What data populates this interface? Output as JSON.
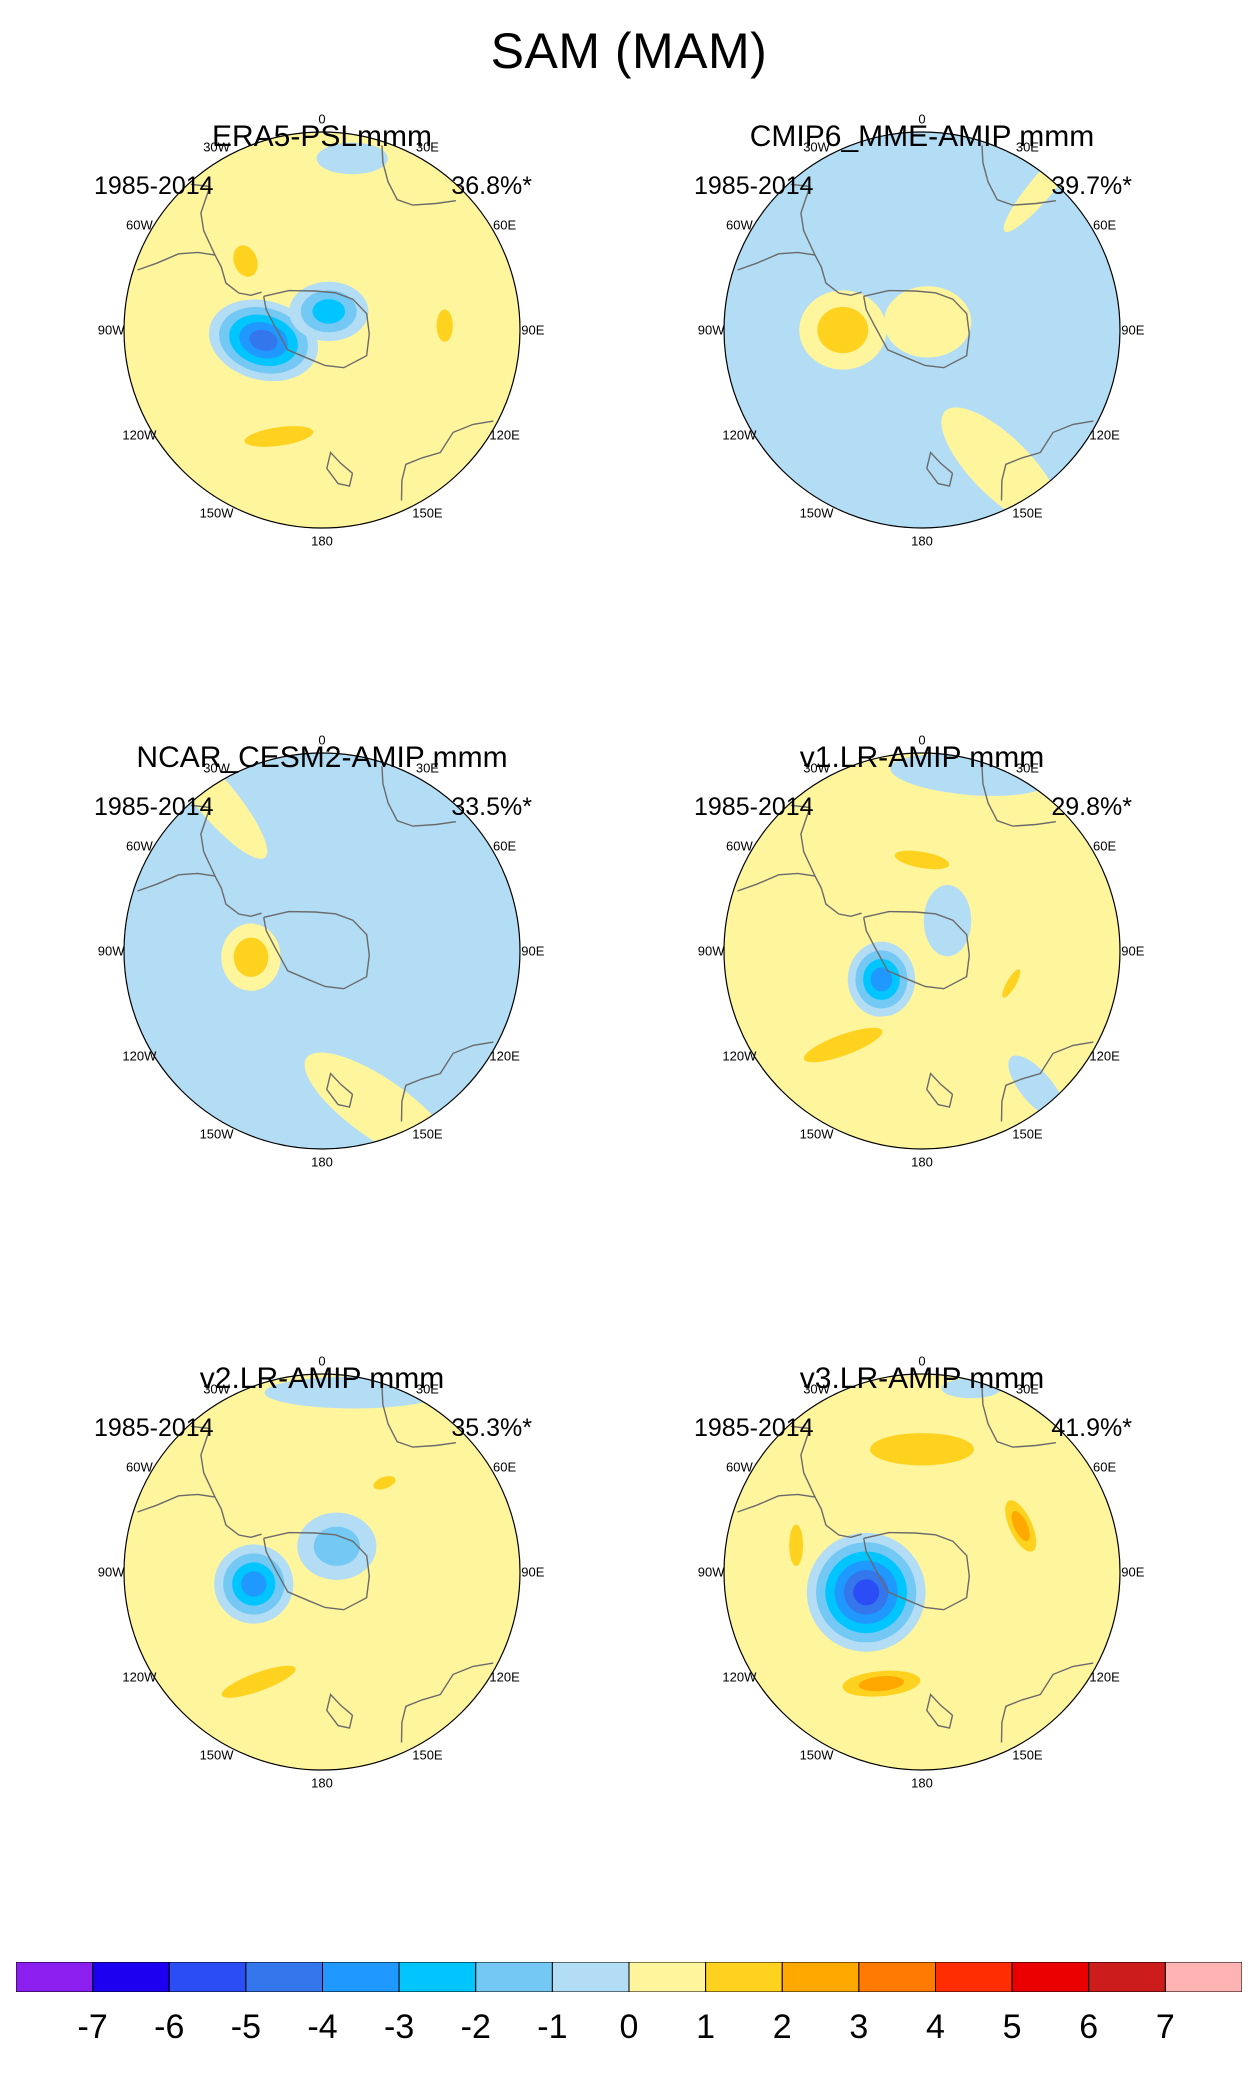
{
  "title": "SAM (MAM)",
  "longitude_labels": [
    "0",
    "30E",
    "60E",
    "90E",
    "120E",
    "150E",
    "180",
    "150W",
    "120W",
    "90W",
    "60W",
    "30W"
  ],
  "panels": [
    {
      "title": "ERA5-PSLmmm",
      "period": "1985-2014",
      "variance": "36.8%*",
      "background_level": 0.5,
      "features": [
        {
          "lon": -100,
          "colat": 0.3,
          "rx": 0.28,
          "ry": 0.2,
          "rot": 15,
          "min": -5.2
        },
        {
          "lon": 20,
          "colat": 0.1,
          "rx": 0.2,
          "ry": 0.15,
          "rot": 0,
          "min": -3
        },
        {
          "lon": 10,
          "colat": 0.88,
          "rx": 0.18,
          "ry": 0.08,
          "rot": 0,
          "min": -1
        },
        {
          "lon": 88,
          "colat": 0.62,
          "rx": 0.07,
          "ry": 0.14,
          "rot": 0,
          "max": 1.8
        },
        {
          "lon": -48,
          "colat": 0.52,
          "rx": 0.1,
          "ry": 0.14,
          "rot": -20,
          "max": 1.6
        },
        {
          "lon": -158,
          "colat": 0.58,
          "rx": 0.3,
          "ry": 0.08,
          "rot": -8,
          "max": 2.4
        }
      ]
    },
    {
      "title": "CMIP6_MME-AMIP  mmm",
      "period": "1985-2014",
      "variance": "39.7%*",
      "background_level": -0.5,
      "features": [
        {
          "lon": -90,
          "colat": 0.4,
          "rx": 0.22,
          "ry": 0.2,
          "rot": 0,
          "max": 2.4
        },
        {
          "lon": 35,
          "colat": 0.05,
          "rx": 0.22,
          "ry": 0.18,
          "rot": 0,
          "max": 0.8
        },
        {
          "lon": 150,
          "colat": 0.8,
          "rx": 0.4,
          "ry": 0.15,
          "rot": 45,
          "max": 0.8
        },
        {
          "lon": 40,
          "colat": 0.95,
          "rx": 0.3,
          "ry": 0.06,
          "rot": -50,
          "max": 0.8
        },
        {
          "lon": -125,
          "colat": 0.72,
          "rx": 0.22,
          "ry": 0.05,
          "rot": 20,
          "min": -1.4
        }
      ]
    },
    {
      "title": "NCAR_CESM2-AMIP  mmm",
      "period": "1985-2014",
      "variance": "33.5%*",
      "background_level": -0.5,
      "features": [
        {
          "lon": -95,
          "colat": 0.36,
          "rx": 0.15,
          "ry": 0.17,
          "rot": 0,
          "max": 2.2
        },
        {
          "lon": 5,
          "colat": 0.45,
          "rx": 0.2,
          "ry": 0.1,
          "rot": 10,
          "min": -1.4
        },
        {
          "lon": -110,
          "colat": 0.8,
          "rx": 0.04,
          "ry": 0.12,
          "rot": -40,
          "min": -1.4
        },
        {
          "lon": 160,
          "colat": 0.85,
          "rx": 0.45,
          "ry": 0.15,
          "rot": 35,
          "max": 0.8
        },
        {
          "lon": -35,
          "colat": 0.95,
          "rx": 0.4,
          "ry": 0.1,
          "rot": 50,
          "max": 0.8
        }
      ]
    },
    {
      "title": "v1.LR-AMIP  mmm",
      "period": "1985-2014",
      "variance": "29.8%*",
      "background_level": 0.5,
      "features": [
        {
          "lon": -125,
          "colat": 0.25,
          "rx": 0.17,
          "ry": 0.19,
          "rot": 0,
          "min": -3.5
        },
        {
          "lon": 40,
          "colat": 0.2,
          "rx": 0.12,
          "ry": 0.18,
          "rot": 0,
          "min": -1.4
        },
        {
          "lon": 0,
          "colat": 0.46,
          "rx": 0.24,
          "ry": 0.07,
          "rot": 10,
          "max": 1.6
        },
        {
          "lon": -140,
          "colat": 0.62,
          "rx": 0.36,
          "ry": 0.09,
          "rot": -20,
          "max": 1.6
        },
        {
          "lon": 110,
          "colat": 0.48,
          "rx": 0.04,
          "ry": 0.14,
          "rot": 30,
          "max": 1.6
        },
        {
          "lon": 15,
          "colat": 0.92,
          "rx": 0.4,
          "ry": 0.1,
          "rot": 5,
          "min": -1.2
        },
        {
          "lon": 140,
          "colat": 0.9,
          "rx": 0.2,
          "ry": 0.08,
          "rot": 50,
          "min": -1.2
        }
      ]
    },
    {
      "title": "v2.LR-AMIP  mmm",
      "period": "1985-2014",
      "variance": "35.3%*",
      "background_level": 0.5,
      "features": [
        {
          "lon": -100,
          "colat": 0.35,
          "rx": 0.2,
          "ry": 0.2,
          "rot": 0,
          "min": -4.2
        },
        {
          "lon": 30,
          "colat": 0.15,
          "rx": 0.2,
          "ry": 0.17,
          "rot": 0,
          "min": -2.3
        },
        {
          "lon": 10,
          "colat": 0.92,
          "rx": 0.45,
          "ry": 0.08,
          "rot": 0,
          "min": -1.2
        },
        {
          "lon": -150,
          "colat": 0.64,
          "rx": 0.34,
          "ry": 0.08,
          "rot": -20,
          "max": 1.7
        },
        {
          "lon": 35,
          "colat": 0.55,
          "rx": 0.1,
          "ry": 0.05,
          "rot": -20,
          "max": 1.6
        }
      ]
    },
    {
      "title": "v3.LR-AMIP  mmm",
      "period": "1985-2014",
      "variance": "41.9%*",
      "background_level": 0.5,
      "features": [
        {
          "lon": -110,
          "colat": 0.3,
          "rx": 0.3,
          "ry": 0.3,
          "rot": 0,
          "min": -5.8
        },
        {
          "lon": 0,
          "colat": 0.62,
          "rx": 0.45,
          "ry": 0.14,
          "rot": 0,
          "max": 2.2
        },
        {
          "lon": 65,
          "colat": 0.55,
          "rx": 0.08,
          "ry": 0.2,
          "rot": -25,
          "max": 2.6
        },
        {
          "lon": -160,
          "colat": 0.6,
          "rx": 0.28,
          "ry": 0.09,
          "rot": -5,
          "max": 2.8
        },
        {
          "lon": -78,
          "colat": 0.65,
          "rx": 0.06,
          "ry": 0.18,
          "rot": 0,
          "max": 1.6
        },
        {
          "lon": 15,
          "colat": 0.96,
          "rx": 0.15,
          "ry": 0.05,
          "rot": 0,
          "min": -1.2
        }
      ]
    }
  ],
  "colorbar": {
    "labels": [
      "-7",
      "-6",
      "-5",
      "-4",
      "-3",
      "-2",
      "-1",
      "0",
      "1",
      "2",
      "3",
      "4",
      "5",
      "6",
      "7"
    ],
    "colors": [
      "#8b1fef",
      "#1c00ef",
      "#2b4df5",
      "#3476ec",
      "#1f98ff",
      "#00c5ff",
      "#73c8f4",
      "#b3ddf4",
      "#fff59d",
      "#ffd21f",
      "#ffa800",
      "#ff7a00",
      "#ff2d00",
      "#ea0000",
      "#cc1c1c",
      "#ffb3b3"
    ]
  }
}
